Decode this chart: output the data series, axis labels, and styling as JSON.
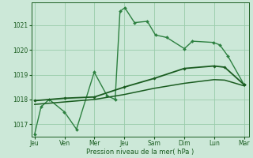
{
  "background_color": "#cce8d8",
  "grid_color": "#99ccaa",
  "line_color_dark": "#1a5c20",
  "line_color_jagged": "#2d8040",
  "x_ticks_labels": [
    "Jeu",
    "Ven",
    "Mer",
    "Jeu",
    "Sam",
    "Dim",
    "Lun",
    "Mar"
  ],
  "x_ticks_pos": [
    0,
    1.857,
    3.714,
    5.571,
    7.429,
    9.286,
    11.143,
    13.0
  ],
  "ylim": [
    1016.5,
    1021.9
  ],
  "yticks": [
    1017,
    1018,
    1019,
    1020,
    1021
  ],
  "xlabel": "Pression niveau de la mer( hPa )",
  "series_jagged": {
    "x": [
      0.0,
      0.4,
      0.9,
      1.85,
      2.6,
      3.7,
      4.5,
      5.0,
      5.3,
      5.6,
      6.2,
      7.0,
      7.5,
      8.2,
      9.3,
      9.8,
      11.1,
      11.5,
      12.0,
      13.0
    ],
    "y": [
      1016.6,
      1017.7,
      1018.0,
      1017.5,
      1016.8,
      1019.1,
      1018.15,
      1018.0,
      1021.55,
      1021.7,
      1021.1,
      1021.15,
      1020.6,
      1020.5,
      1020.05,
      1020.35,
      1020.3,
      1020.2,
      1019.75,
      1018.6
    ],
    "color": "#2d8040",
    "lw": 1.0
  },
  "series_upper": {
    "x": [
      0.0,
      1.857,
      3.714,
      5.571,
      7.429,
      9.286,
      11.143,
      11.8,
      13.0
    ],
    "y": [
      1017.95,
      1018.05,
      1018.1,
      1018.5,
      1018.85,
      1019.25,
      1019.35,
      1019.3,
      1018.6
    ],
    "color": "#1a5c20",
    "lw": 1.3
  },
  "series_lower": {
    "x": [
      0.0,
      1.857,
      3.714,
      5.571,
      7.429,
      9.286,
      11.143,
      11.8,
      13.0
    ],
    "y": [
      1017.8,
      1017.9,
      1018.0,
      1018.2,
      1018.45,
      1018.65,
      1018.8,
      1018.78,
      1018.55
    ],
    "color": "#1a5c20",
    "lw": 1.1
  }
}
